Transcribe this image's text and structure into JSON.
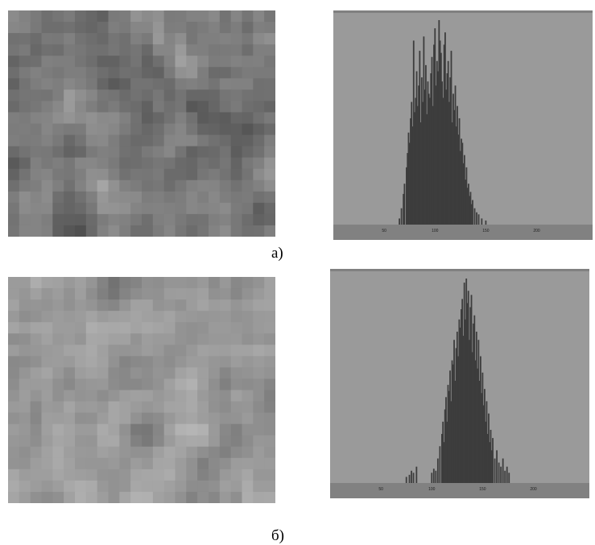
{
  "colors": {
    "image_bg": "#8c8c8c",
    "hist_bg": "#9a9a9a",
    "hist_axis_band": "#818181",
    "bars": "#3d3d3d"
  },
  "panels": [
    {
      "label": "а)",
      "texture_seed": 11,
      "texture_base": 120,
      "texture_spread": 70
    },
    {
      "label": "б)",
      "texture_seed": 29,
      "texture_base": 150,
      "texture_spread": 55
    }
  ],
  "chart_data": [
    {
      "type": "bar",
      "title": "",
      "xlabel": "",
      "ylabel": "",
      "xlim": [
        0,
        255
      ],
      "ylim": [
        0,
        100
      ],
      "tick_labels": [
        "50",
        "100",
        "150",
        "200"
      ],
      "tick_values": [
        50,
        100,
        150,
        200
      ],
      "series": [
        {
          "x": [
            65,
            67,
            69,
            70,
            72,
            73,
            74,
            75,
            76,
            77,
            78,
            79,
            80,
            81,
            82,
            83,
            84,
            85,
            86,
            87,
            88,
            89,
            90,
            91,
            92,
            93,
            94,
            95,
            96,
            97,
            98,
            99,
            100,
            101,
            102,
            103,
            104,
            105,
            106,
            107,
            108,
            109,
            110,
            111,
            112,
            113,
            114,
            115,
            116,
            117,
            118,
            119,
            120,
            121,
            122,
            123,
            124,
            125,
            126,
            127,
            128,
            129,
            130,
            131,
            132,
            133,
            134,
            135,
            136,
            137,
            139,
            141,
            143,
            146,
            150
          ],
          "values": [
            3,
            8,
            15,
            20,
            28,
            35,
            45,
            40,
            52,
            60,
            48,
            90,
            55,
            62,
            75,
            58,
            68,
            85,
            50,
            72,
            60,
            92,
            66,
            78,
            54,
            70,
            64,
            62,
            74,
            82,
            58,
            88,
            96,
            68,
            80,
            75,
            100,
            90,
            84,
            70,
            62,
            88,
            94,
            66,
            74,
            80,
            60,
            72,
            85,
            50,
            64,
            56,
            68,
            48,
            58,
            44,
            52,
            36,
            42,
            40,
            30,
            34,
            22,
            28,
            18,
            20,
            14,
            16,
            10,
            12,
            8,
            6,
            5,
            3,
            2
          ]
        }
      ]
    },
    {
      "type": "bar",
      "title": "",
      "xlabel": "",
      "ylabel": "",
      "xlim": [
        0,
        255
      ],
      "ylim": [
        0,
        100
      ],
      "tick_labels": [
        "50",
        "100",
        "150",
        "200"
      ],
      "tick_values": [
        50,
        100,
        150,
        200
      ],
      "series": [
        {
          "x": [
            75,
            78,
            80,
            82,
            85,
            100,
            102,
            104,
            106,
            108,
            110,
            111,
            112,
            113,
            114,
            115,
            116,
            117,
            118,
            119,
            120,
            121,
            122,
            123,
            124,
            125,
            126,
            127,
            128,
            129,
            130,
            131,
            132,
            133,
            134,
            135,
            136,
            137,
            138,
            139,
            140,
            141,
            142,
            143,
            144,
            145,
            146,
            147,
            148,
            149,
            150,
            151,
            152,
            153,
            154,
            155,
            156,
            157,
            158,
            159,
            160,
            162,
            164,
            166,
            168,
            170,
            172,
            174,
            176
          ],
          "values": [
            3,
            4,
            6,
            5,
            8,
            5,
            7,
            6,
            12,
            18,
            24,
            30,
            20,
            36,
            42,
            30,
            48,
            45,
            55,
            40,
            60,
            58,
            70,
            50,
            66,
            74,
            62,
            80,
            76,
            85,
            90,
            72,
            98,
            80,
            100,
            88,
            94,
            70,
            86,
            92,
            64,
            78,
            82,
            60,
            74,
            56,
            70,
            50,
            62,
            44,
            54,
            38,
            46,
            30,
            40,
            24,
            34,
            20,
            26,
            16,
            22,
            12,
            16,
            10,
            8,
            12,
            6,
            8,
            5
          ]
        }
      ]
    }
  ]
}
